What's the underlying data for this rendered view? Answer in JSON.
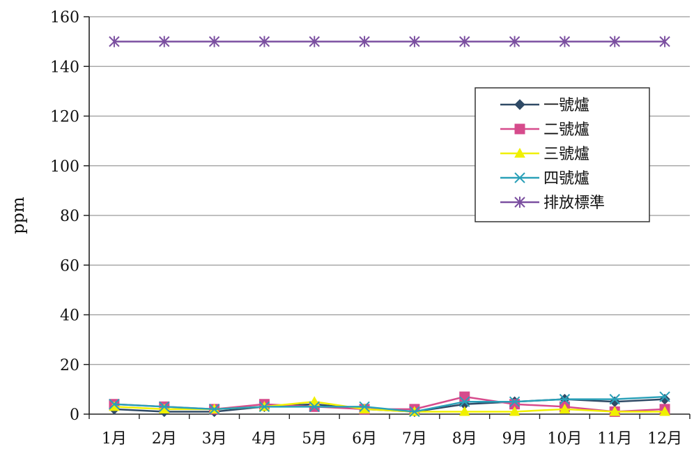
{
  "chart_data": {
    "type": "line",
    "title": "",
    "xlabel": "",
    "ylabel": "ppm",
    "ylim": [
      0,
      160
    ],
    "yticks": [
      0,
      20,
      40,
      60,
      80,
      100,
      120,
      140,
      160
    ],
    "categories": [
      "1月",
      "2月",
      "3月",
      "4月",
      "5月",
      "6月",
      "7月",
      "8月",
      "9月",
      "10月",
      "11月",
      "12月"
    ],
    "grid": "horizontal",
    "legend_position": "right",
    "series": [
      {
        "name": "一號爐",
        "color": "#2f4a66",
        "marker": "diamond",
        "values": [
          2,
          1,
          1,
          3,
          4,
          2,
          1,
          4,
          5,
          6,
          5,
          6
        ]
      },
      {
        "name": "二號爐",
        "color": "#d64b8c",
        "marker": "square",
        "values": [
          4,
          3,
          2,
          4,
          3,
          2,
          2,
          7,
          4,
          3,
          1,
          2
        ]
      },
      {
        "name": "三號爐",
        "color": "#f0f000",
        "marker": "triangle",
        "values": [
          3,
          2,
          2,
          3,
          5,
          2,
          1,
          1,
          1,
          2,
          1,
          1
        ]
      },
      {
        "name": "四號爐",
        "color": "#2aa0b8",
        "marker": "x",
        "values": [
          4,
          3,
          2,
          3,
          3,
          3,
          1,
          5,
          5,
          6,
          6,
          7
        ]
      },
      {
        "name": "排放標準",
        "color": "#7b4fa0",
        "marker": "star",
        "values": [
          150,
          150,
          150,
          150,
          150,
          150,
          150,
          150,
          150,
          150,
          150,
          150
        ]
      }
    ]
  }
}
